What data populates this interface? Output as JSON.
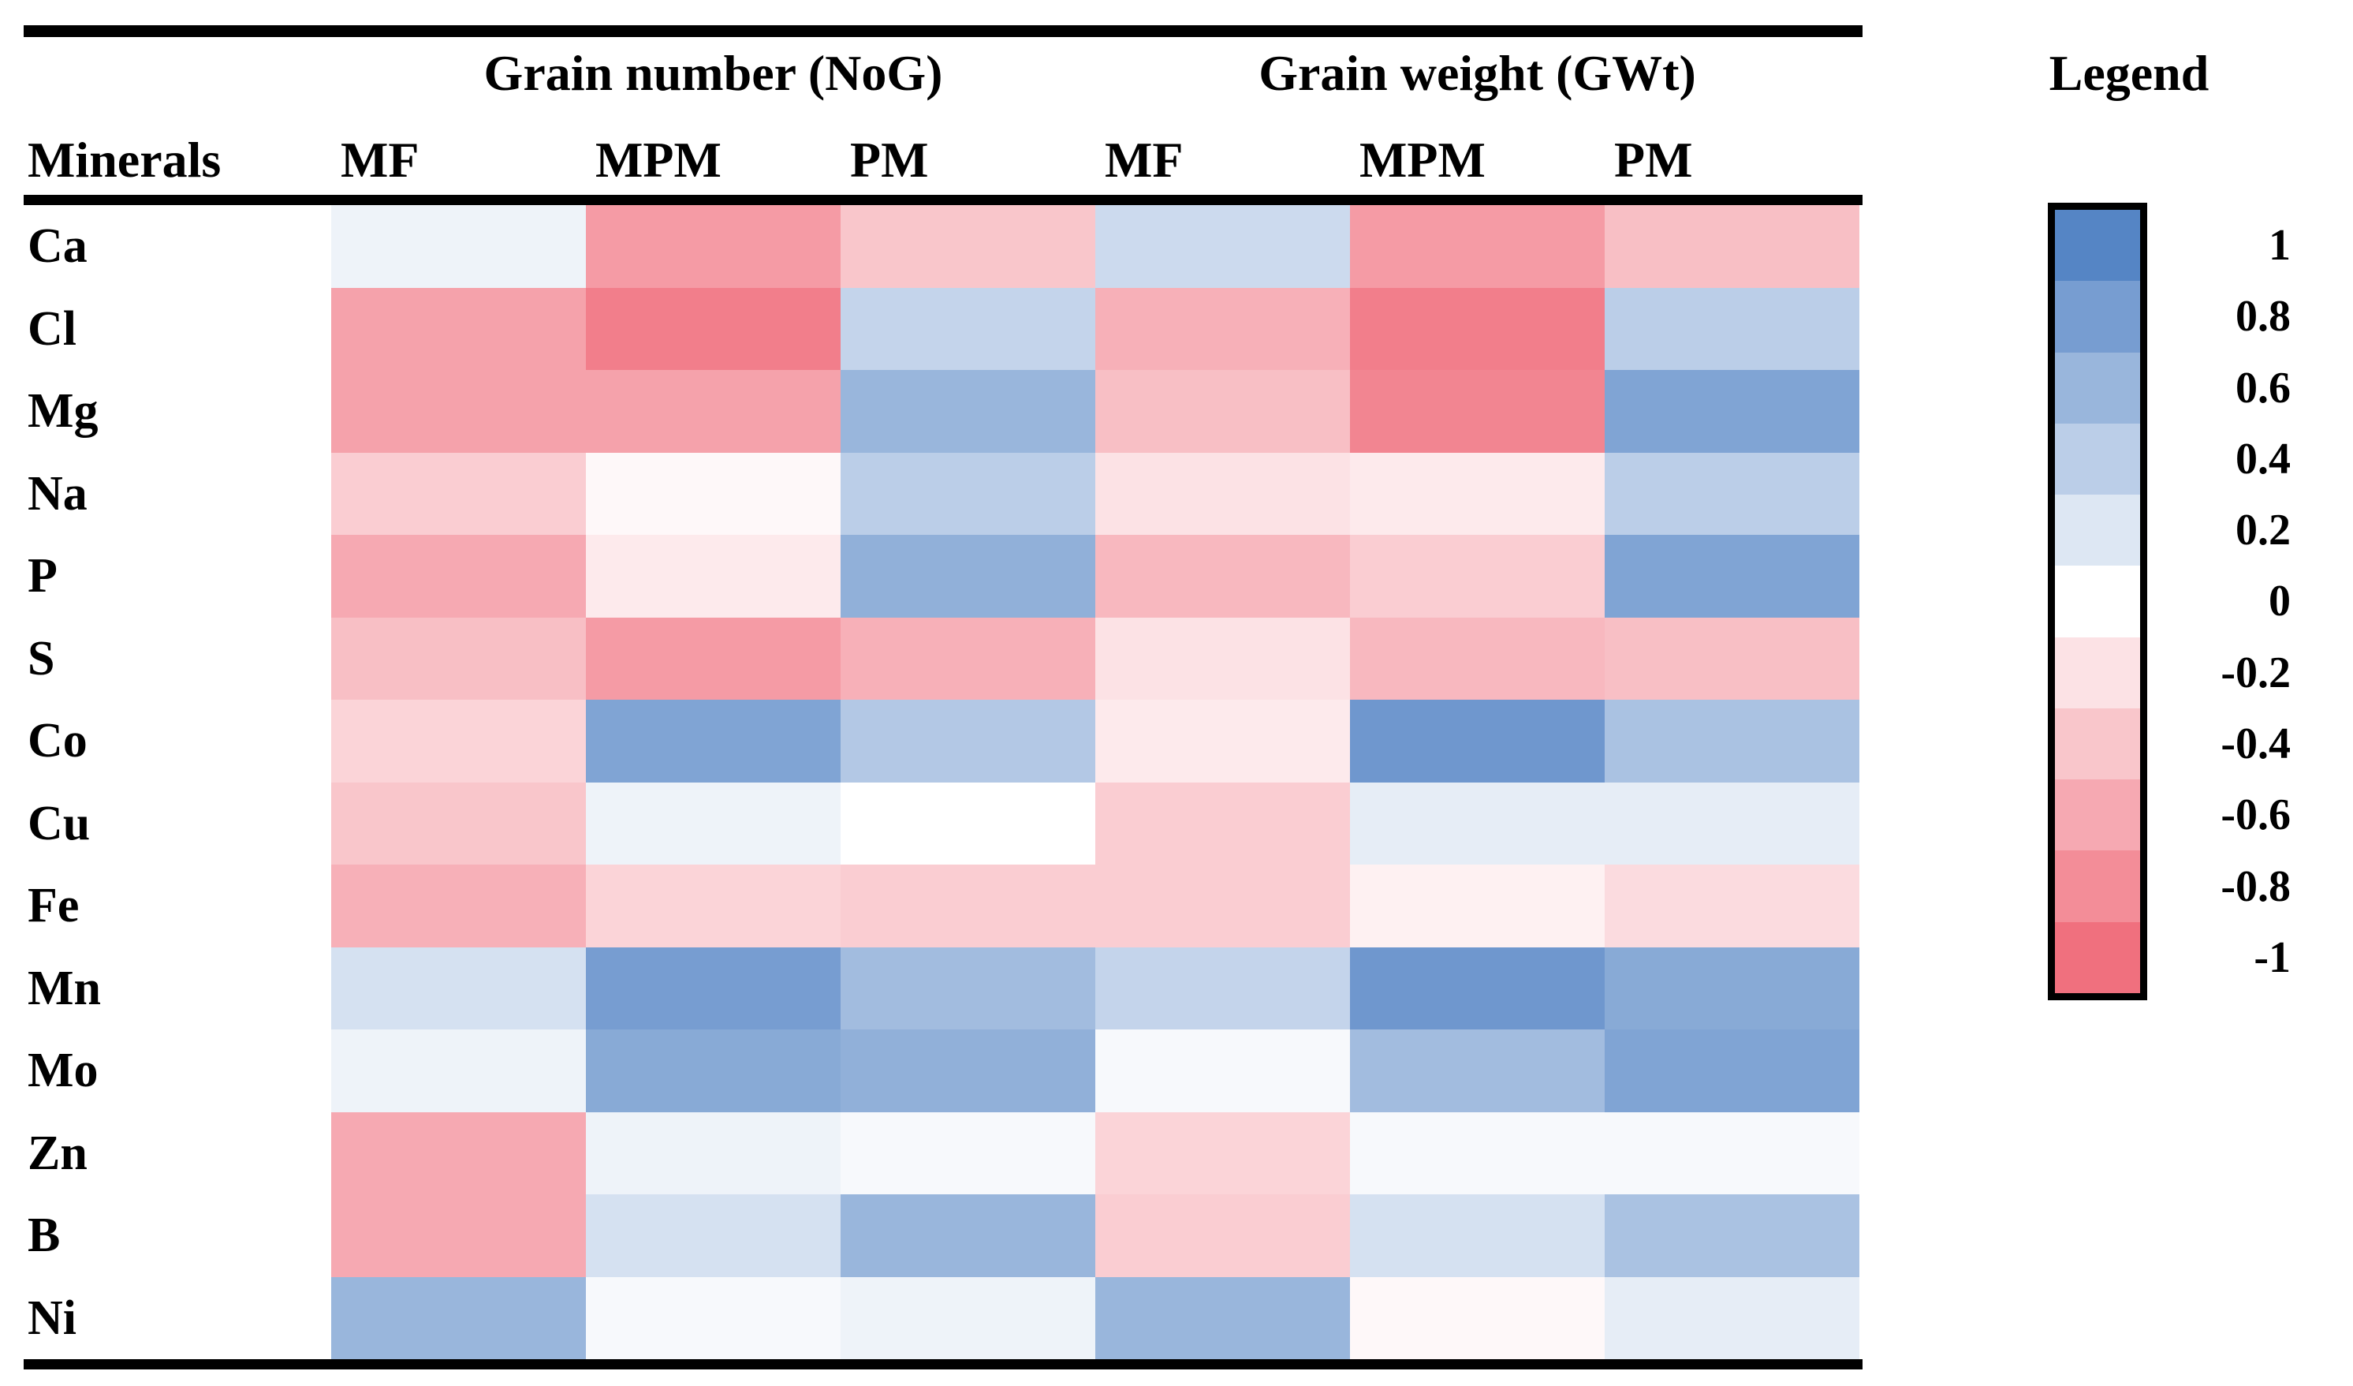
{
  "table": {
    "minerals_header": "Minerals",
    "groups": [
      {
        "label": "Grain number (NoG)",
        "columns": [
          "MF",
          "MPM",
          "PM"
        ]
      },
      {
        "label": "Grain weight (GWt)",
        "columns": [
          "MF",
          "MPM",
          "PM"
        ]
      }
    ]
  },
  "legend": {
    "title": "Legend",
    "tick_labels": [
      "1",
      "0.8",
      "0.6",
      "0.4",
      "0.2",
      "0",
      "-0.2",
      "-0.4",
      "-0.6",
      "-0.8",
      "-1"
    ],
    "segment_values": [
      1,
      0.8,
      0.6,
      0.4,
      0.2,
      0,
      -0.2,
      -0.4,
      -0.6,
      -0.8,
      -1
    ]
  },
  "colors": {
    "positive_max": "#5585C5",
    "negative_max": "#F0707E",
    "zero": "#FFFFFF",
    "rule": "#000000"
  },
  "chart_data": {
    "type": "heatmap",
    "rows": [
      "Ca",
      "Cl",
      "Mg",
      "Na",
      "P",
      "S",
      "Co",
      "Cu",
      "Fe",
      "Mn",
      "Mo",
      "Zn",
      "B",
      "Ni"
    ],
    "columns": [
      "NoG MF",
      "NoG MPM",
      "NoG PM",
      "GWt MF",
      "GWt MPM",
      "GWt PM"
    ],
    "column_groups": [
      {
        "label": "Grain number (NoG)",
        "span": 3
      },
      {
        "label": "Grain weight (GWt)",
        "span": 3
      }
    ],
    "value_range": [
      -1,
      1
    ],
    "legend_position": "right",
    "values": [
      [
        0.1,
        -0.7,
        -0.4,
        0.3,
        -0.7,
        -0.45
      ],
      [
        -0.65,
        -0.9,
        0.35,
        -0.55,
        -0.9,
        0.4
      ],
      [
        -0.65,
        -0.65,
        0.6,
        -0.45,
        -0.85,
        0.75
      ],
      [
        -0.35,
        -0.05,
        0.4,
        -0.2,
        -0.15,
        0.4
      ],
      [
        -0.6,
        -0.15,
        0.65,
        -0.5,
        -0.35,
        0.75
      ],
      [
        -0.45,
        -0.7,
        -0.55,
        -0.2,
        -0.5,
        -0.45
      ],
      [
        -0.3,
        0.75,
        0.45,
        -0.15,
        0.85,
        0.5
      ],
      [
        -0.4,
        0.1,
        0.0,
        -0.35,
        0.15,
        0.15
      ],
      [
        -0.55,
        -0.3,
        -0.35,
        -0.35,
        -0.1,
        -0.25
      ],
      [
        0.25,
        0.8,
        0.55,
        0.35,
        0.85,
        0.7
      ],
      [
        0.1,
        0.7,
        0.65,
        0.05,
        0.55,
        0.75
      ],
      [
        -0.6,
        0.1,
        0.05,
        -0.3,
        0.05,
        0.05
      ],
      [
        -0.6,
        0.25,
        0.6,
        -0.35,
        0.25,
        0.5
      ],
      [
        0.6,
        0.05,
        0.1,
        0.6,
        -0.05,
        0.15
      ]
    ]
  }
}
